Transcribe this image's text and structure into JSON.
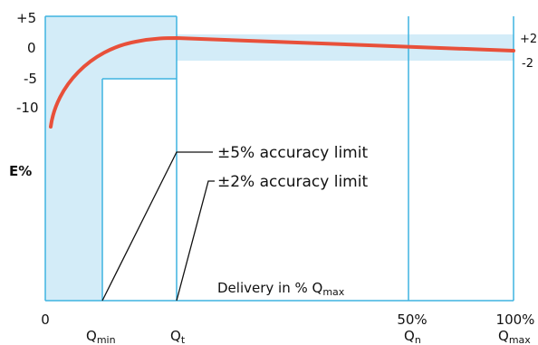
{
  "y_axis": {
    "label": "E%",
    "ticks": [
      "+5",
      "0",
      "-5",
      "-10"
    ]
  },
  "right_labels": [
    "+2",
    "-2"
  ],
  "annotations": [
    "±5% accuracy limit",
    "±2% accuracy limit"
  ],
  "x_axis": {
    "title": {
      "text": "Delivery in % Q",
      "sub": "max"
    },
    "percent_labels": [
      "0",
      "50%",
      "100%"
    ],
    "flow_labels": [
      {
        "base": "Q",
        "sub": "min"
      },
      {
        "base": "Q",
        "sub": "t"
      },
      {
        "base": "Q",
        "sub": "n"
      },
      {
        "base": "Q",
        "sub": "max"
      }
    ]
  }
}
